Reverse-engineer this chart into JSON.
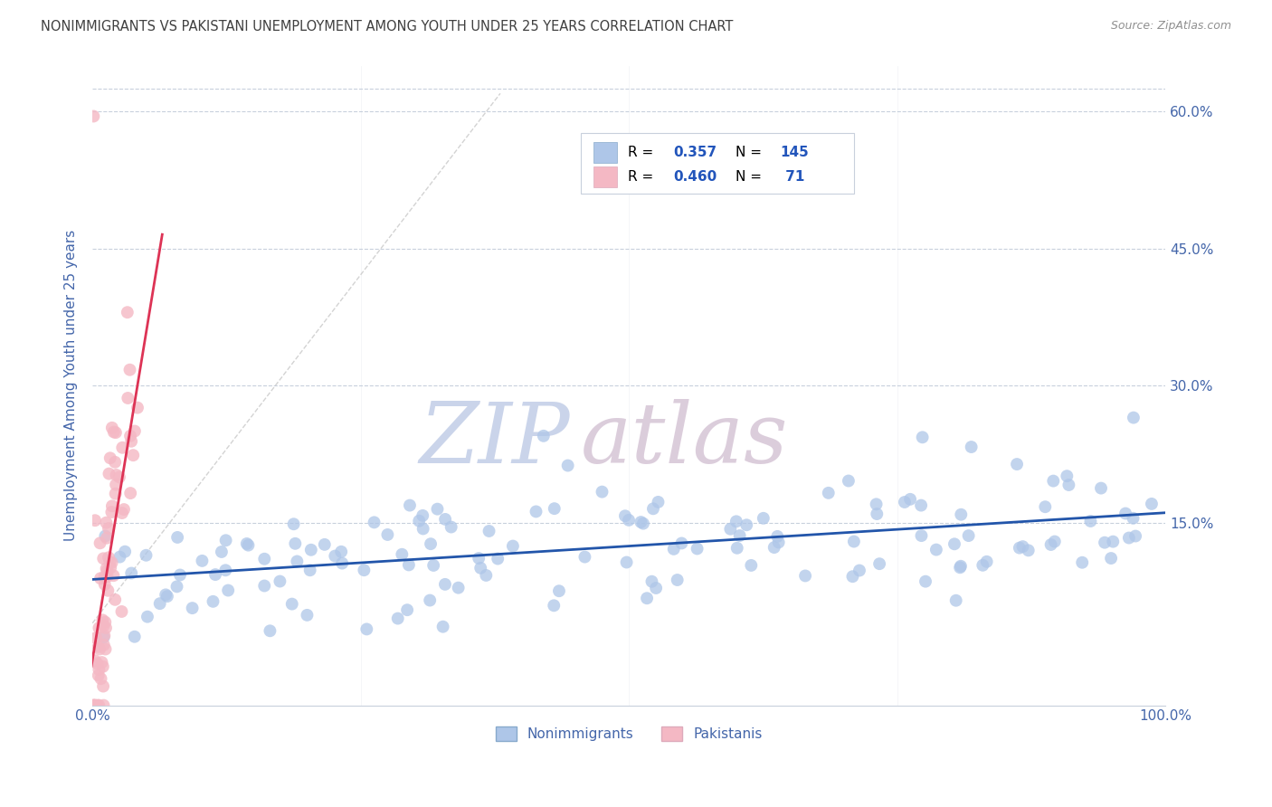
{
  "title": "NONIMMIGRANTS VS PAKISTANI UNEMPLOYMENT AMONG YOUTH UNDER 25 YEARS CORRELATION CHART",
  "source": "Source: ZipAtlas.com",
  "ylabel": "Unemployment Among Youth under 25 years",
  "watermark_zip": "ZIP",
  "watermark_atlas": "atlas",
  "xlim": [
    0.0,
    1.0
  ],
  "ylim": [
    -0.05,
    0.65
  ],
  "y_ticks": [
    0.15,
    0.3,
    0.45,
    0.6
  ],
  "y_tick_labels": [
    "15.0%",
    "30.0%",
    "45.0%",
    "60.0%"
  ],
  "blue_R": "0.357",
  "blue_N": "145",
  "pink_R": "0.460",
  "pink_N": " 71",
  "blue_color": "#AEC6E8",
  "pink_color": "#F4B8C4",
  "blue_line_color": "#2255AA",
  "pink_line_color": "#DD3355",
  "diag_line_color": "#C8C8C8",
  "grid_color": "#C8D0DC",
  "title_color": "#404040",
  "source_color": "#909090",
  "axis_label_color": "#4466AA",
  "tick_color": "#4466AA",
  "legend_text_color": "#000000",
  "legend_val_color": "#2255BB",
  "legend_border_color": "#C8D0DC",
  "bottom_legend_label_color": "#4466AA"
}
